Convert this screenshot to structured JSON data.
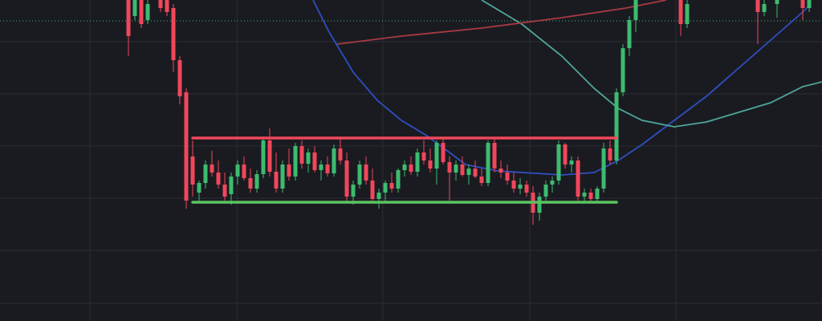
{
  "chart_data": {
    "type": "candlestick",
    "xlim": [
      -20,
      108
    ],
    "ylim": [
      0,
      400
    ],
    "xticks": [
      -6,
      16.9,
      39.6,
      62.5,
      85.25
    ],
    "yticks": [
      22,
      88,
      153,
      218,
      283,
      348
    ],
    "grid": true,
    "up_color": "#3dbb6f",
    "down_color": "#f0475b",
    "candles": [
      [
        405,
        410,
        330,
        355
      ],
      [
        380,
        405,
        375,
        400
      ],
      [
        400,
        405,
        365,
        370
      ],
      [
        375,
        400,
        370,
        395
      ],
      null,
      [
        400,
        405,
        385,
        390
      ],
      [
        400,
        405,
        380,
        385
      ],
      [
        390,
        395,
        310,
        325
      ],
      [
        325,
        330,
        270,
        280
      ],
      [
        285,
        290,
        140,
        150
      ],
      [
        205,
        225,
        155,
        170
      ],
      [
        160,
        175,
        150,
        172
      ],
      [
        172,
        200,
        165,
        195
      ],
      [
        195,
        212,
        180,
        185
      ],
      [
        185,
        200,
        165,
        170
      ],
      [
        170,
        185,
        150,
        155
      ],
      [
        158,
        185,
        145,
        180
      ],
      [
        180,
        200,
        170,
        195
      ],
      [
        195,
        205,
        175,
        178
      ],
      [
        178,
        190,
        160,
        165
      ],
      [
        165,
        188,
        160,
        183
      ],
      [
        183,
        230,
        178,
        225
      ],
      [
        225,
        240,
        180,
        186
      ],
      [
        186,
        210,
        160,
        165
      ],
      [
        165,
        200,
        160,
        195
      ],
      [
        195,
        215,
        175,
        180
      ],
      [
        180,
        222,
        175,
        218
      ],
      [
        218,
        225,
        190,
        196
      ],
      [
        196,
        215,
        185,
        210
      ],
      [
        210,
        218,
        185,
        188
      ],
      [
        188,
        200,
        175,
        195
      ],
      [
        195,
        205,
        180,
        184
      ],
      [
        184,
        220,
        180,
        215
      ],
      [
        215,
        230,
        195,
        200
      ],
      [
        200,
        210,
        150,
        155
      ],
      [
        155,
        175,
        145,
        170
      ],
      [
        170,
        200,
        165,
        195
      ],
      [
        195,
        205,
        170,
        175
      ],
      [
        175,
        190,
        150,
        152
      ],
      [
        152,
        165,
        140,
        160
      ],
      [
        160,
        175,
        148,
        172
      ],
      [
        172,
        185,
        160,
        165
      ],
      [
        165,
        190,
        160,
        188
      ],
      [
        188,
        200,
        180,
        195
      ],
      [
        195,
        205,
        182,
        186
      ],
      [
        186,
        215,
        180,
        210
      ],
      [
        210,
        225,
        195,
        200
      ],
      [
        200,
        215,
        185,
        190
      ],
      [
        190,
        225,
        170,
        222
      ],
      [
        222,
        228,
        195,
        198
      ],
      [
        198,
        205,
        150,
        185
      ],
      [
        185,
        200,
        175,
        195
      ],
      [
        195,
        205,
        180,
        182
      ],
      [
        182,
        195,
        170,
        190
      ],
      [
        190,
        200,
        178,
        180
      ],
      [
        180,
        190,
        168,
        172
      ],
      [
        172,
        225,
        168,
        222
      ],
      [
        222,
        228,
        185,
        190
      ],
      [
        190,
        200,
        178,
        185
      ],
      [
        185,
        195,
        170,
        175
      ],
      [
        175,
        185,
        160,
        165
      ],
      [
        165,
        178,
        158,
        170
      ],
      [
        170,
        175,
        155,
        160
      ],
      [
        160,
        168,
        120,
        135
      ],
      [
        135,
        160,
        125,
        155
      ],
      [
        155,
        175,
        150,
        170
      ],
      [
        170,
        180,
        160,
        175
      ],
      [
        175,
        225,
        170,
        220
      ],
      [
        220,
        222,
        190,
        195
      ],
      [
        195,
        205,
        185,
        200
      ],
      [
        200,
        205,
        150,
        155
      ],
      [
        155,
        165,
        148,
        160
      ],
      [
        160,
        165,
        150,
        152
      ],
      [
        152,
        168,
        148,
        165
      ],
      [
        165,
        222,
        160,
        215
      ],
      [
        215,
        225,
        195,
        200
      ],
      [
        200,
        290,
        195,
        285
      ],
      [
        285,
        345,
        280,
        340
      ],
      [
        340,
        380,
        330,
        375
      ],
      [
        375,
        410,
        360,
        405
      ],
      null,
      null,
      null,
      null,
      null,
      null,
      [
        400,
        410,
        355,
        370
      ],
      [
        370,
        400,
        365,
        395
      ],
      null,
      null,
      null,
      null,
      null,
      null,
      null,
      null,
      null,
      null,
      [
        400,
        410,
        345,
        385
      ],
      [
        385,
        400,
        380,
        395
      ],
      null,
      [
        395,
        410,
        378,
        405
      ],
      null,
      null,
      null,
      [
        400,
        410,
        375,
        390
      ],
      [
        390,
        408,
        385,
        405
      ],
      null
    ],
    "series": [
      {
        "color": "#2f4fc0",
        "x": [
          28.75,
          31.25,
          35,
          38.75,
          42.5,
          46.25,
          50,
          52.5,
          57.5,
          67.5,
          72.5,
          76.25,
          80,
          85,
          90,
          95,
          100,
          105,
          106.25
        ],
        "values": [
          400,
          360,
          310,
          275,
          250,
          232,
          210,
          195,
          187,
          182,
          185,
          200,
          220,
          250,
          280,
          315,
          350,
          385,
          395
        ]
      },
      {
        "color": "#4fa69a",
        "x": [
          55,
          61.25,
          67.5,
          72.5,
          76.25,
          80,
          85,
          90,
          95,
          100,
          105,
          108
        ],
        "values": [
          400,
          370,
          330,
          290,
          265,
          250,
          242,
          248,
          260,
          272,
          292,
          298
        ]
      },
      {
        "color": "#a83a42",
        "x": [
          32.5,
          42.5,
          55,
          67.5,
          77.5,
          83.75
        ],
        "values": [
          345,
          355,
          365,
          378,
          390,
          400
        ]
      }
    ],
    "levels": [
      {
        "value": 228,
        "from": 10,
        "to": 76,
        "color": "#f0475b"
      },
      {
        "value": 148,
        "from": 10,
        "to": 76,
        "color": "#5cc45e"
      }
    ],
    "ref_line": {
      "value": 374,
      "color": "#3dbb6f"
    }
  }
}
